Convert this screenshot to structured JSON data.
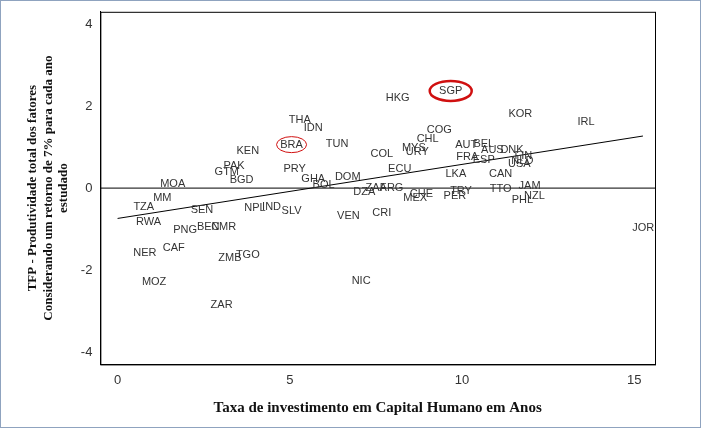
{
  "chart_data": {
    "type": "scatter",
    "xlabel": "Taxa de investimento em Capital Humano em Anos",
    "ylabel": [
      "TFP - Produtividade total dos fatores",
      "Considerando um retorno de 7% para cada ano",
      "estudado"
    ],
    "xlim": [
      -0.5,
      15.6
    ],
    "ylim": [
      -4.3,
      4.3
    ],
    "xticks": [
      0,
      5,
      10,
      15
    ],
    "yticks": [
      -4,
      -2,
      0,
      2,
      4
    ],
    "grid": false,
    "color": "#333333",
    "labels": [
      "HKG",
      "SGP",
      "KOR",
      "IRL",
      "THA",
      "IDN",
      "BRA",
      "TUN",
      "KEN",
      "COG",
      "CHL",
      "MYS",
      "COL",
      "URY",
      "AUT",
      "BEL",
      "AUS",
      "DNK",
      "FRA",
      "ESP",
      "FIN",
      "NLD",
      "USA",
      "PAK",
      "GTM",
      "BGD",
      "PRY",
      "ECU",
      "LKA",
      "CAN",
      "MOA",
      "MM",
      "TZA",
      "RWA",
      "SEN",
      "NPL",
      "IND",
      "SLV",
      "GHA",
      "BOL",
      "DOM",
      "ZAF",
      "ARG",
      "DZA",
      "VEN",
      "CRI",
      "CHE",
      "MEX",
      "PER",
      "TRY",
      "TTO",
      "JAM",
      "NZL",
      "PHL",
      "JOR",
      "PNG",
      "BEN",
      "CMR",
      "CAF",
      "NER",
      "ZMB",
      "TGO",
      "MOZ",
      "NIC",
      "ZAR"
    ],
    "x": [
      8.13,
      9.67,
      11.69,
      13.6,
      5.29,
      5.68,
      5.05,
      6.37,
      3.78,
      9.34,
      9.0,
      8.6,
      7.67,
      8.7,
      10.12,
      10.63,
      10.88,
      11.45,
      10.15,
      10.63,
      11.78,
      11.75,
      11.66,
      3.38,
      3.17,
      3.6,
      5.14,
      8.19,
      9.82,
      11.12,
      1.6,
      1.3,
      0.76,
      0.9,
      2.45,
      3.99,
      4.47,
      5.05,
      5.68,
      5.98,
      6.68,
      7.5,
      7.95,
      7.16,
      6.7,
      7.67,
      8.82,
      8.64,
      9.79,
      9.97,
      11.12,
      11.96,
      12.1,
      11.75,
      15.26,
      1.96,
      2.63,
      3.08,
      1.63,
      0.79,
      3.26,
      3.78,
      1.06,
      7.07,
      3.02
    ],
    "values": [
      2.21,
      2.37,
      1.82,
      1.61,
      1.66,
      1.47,
      1.06,
      1.08,
      0.9,
      1.43,
      1.2,
      0.99,
      0.83,
      0.88,
      1.04,
      1.08,
      0.92,
      0.94,
      0.76,
      0.69,
      0.78,
      0.65,
      0.58,
      0.53,
      0.39,
      0.21,
      0.46,
      0.46,
      0.35,
      0.35,
      0.09,
      -0.23,
      -0.46,
      -0.83,
      -0.53,
      -0.48,
      -0.46,
      -0.55,
      0.23,
      0.07,
      0.28,
      0,
      0,
      -0.09,
      -0.69,
      -0.6,
      -0.14,
      -0.23,
      -0.18,
      -0.07,
      -0.02,
      0.05,
      -0.18,
      -0.28,
      -0.97,
      -1.01,
      -0.94,
      -0.94,
      -1.45,
      -1.59,
      -1.7,
      -1.64,
      -2.28,
      -2.26,
      -2.86
    ],
    "trend_line": {
      "x": [
        0,
        15.25
      ],
      "y": [
        -0.74,
        1.27
      ],
      "color": "#000000"
    },
    "reference_line": {
      "y": 0,
      "color": "#000000"
    },
    "highlight": {
      "labels": [
        "SGP",
        "BRA"
      ],
      "color": "#d01010"
    }
  }
}
